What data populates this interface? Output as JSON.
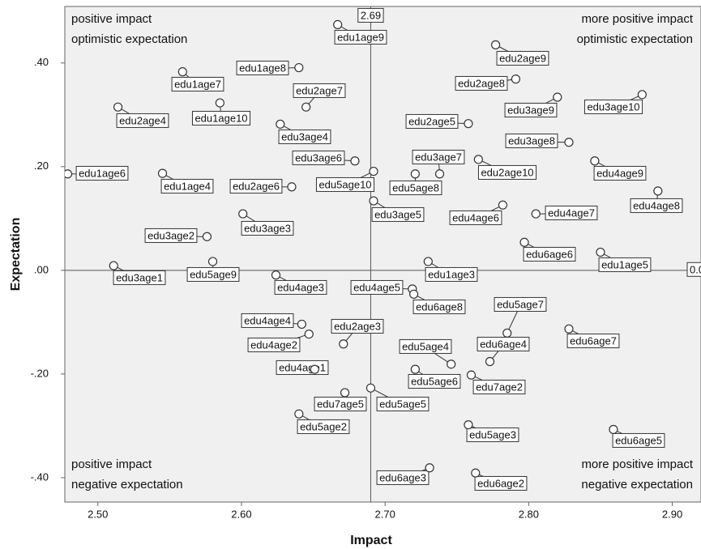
{
  "chart_data": {
    "type": "scatter",
    "x_label": "Impact",
    "y_label": "Expectation",
    "xlim": [
      2.477,
      2.92
    ],
    "ylim": [
      -0.447,
      0.509
    ],
    "xticks": [
      {
        "value": 2.5,
        "label": "2.50"
      },
      {
        "value": 2.6,
        "label": "2.60"
      },
      {
        "value": 2.7,
        "label": "2.70"
      },
      {
        "value": 2.8,
        "label": "2.80"
      },
      {
        "value": 2.9,
        "label": "2.90"
      }
    ],
    "yticks": [
      {
        "value": 0.4,
        "label": ".40"
      },
      {
        "value": 0.2,
        "label": ".20"
      },
      {
        "value": 0,
        "label": ".00"
      },
      {
        "value": -0.2,
        "label": "-.20"
      },
      {
        "value": -0.4,
        "label": "-.40"
      }
    ],
    "reference_lines": {
      "x": {
        "value": 2.69,
        "label": "2.69"
      },
      "y": {
        "value": 0,
        "label": "0.0"
      }
    },
    "annotations": [
      [
        "positive impact",
        "optimistic expectation"
      ],
      [
        "more positive impact",
        "optimistic expectation"
      ],
      [
        "positive impact",
        "negative expectation"
      ],
      [
        "more positive impact",
        "negative expectation"
      ]
    ],
    "marker_color": "#333333",
    "point_labels": [
      "edu1age9",
      "edu2age9",
      "edu1age8",
      "edu1age7",
      "edu2age8",
      "edu2age7",
      "edu1age10",
      "edu3age9",
      "edu3age10",
      "edu2age4",
      "edu2age5",
      "edu3age4",
      "edu3age8",
      "edu1age6",
      "edu1age4",
      "edu3age6",
      "edu5age8",
      "edu3age7",
      "edu2age10",
      "edu4age9",
      "edu5age10",
      "edu2age6",
      "edu4age8",
      "edu3age5",
      "edu4age6",
      "edu4age7",
      "edu3age3",
      "edu3age2",
      "edu6age6",
      "edu1age5",
      "edu5age9",
      "edu3age1",
      "edu1age3",
      "edu4age3",
      "edu4age5",
      "edu6age8",
      "edu4age4",
      "edu4age2",
      "edu5age7",
      "edu6age7",
      "edu2age3",
      "edu6age4",
      "edu5age4",
      "edu4age1",
      "edu5age6",
      "edu7age2",
      "edu7age5",
      "edu5age5",
      "edu5age2",
      "edu5age3",
      "edu6age5",
      "edu6age3",
      "edu6age2"
    ],
    "x": [
      2.667,
      2.777,
      2.64,
      2.559,
      2.791,
      2.645,
      2.585,
      2.82,
      2.879,
      2.514,
      2.758,
      2.627,
      2.828,
      2.479,
      2.545,
      2.679,
      2.721,
      2.738,
      2.765,
      2.846,
      2.692,
      2.635,
      2.89,
      2.692,
      2.782,
      2.805,
      2.601,
      2.576,
      2.797,
      2.85,
      2.58,
      2.511,
      2.73,
      2.624,
      2.719,
      2.72,
      2.642,
      2.647,
      2.785,
      2.828,
      2.671,
      2.773,
      2.746,
      2.651,
      2.721,
      2.76,
      2.672,
      2.69,
      2.64,
      2.758,
      2.859,
      2.731,
      2.763
    ],
    "series": [
      {
        "values": [
          0.474,
          0.435,
          0.391,
          0.383,
          0.369,
          0.315,
          0.323,
          0.334,
          0.339,
          0.315,
          0.283,
          0.282,
          0.247,
          0.186,
          0.187,
          0.211,
          0.186,
          0.186,
          0.214,
          0.211,
          0.191,
          0.161,
          0.153,
          0.134,
          0.126,
          0.109,
          0.109,
          0.065,
          0.054,
          0.035,
          0.017,
          0.009,
          0.017,
          -0.009,
          -0.036,
          -0.046,
          -0.104,
          -0.123,
          -0.121,
          -0.113,
          -0.142,
          -0.176,
          -0.181,
          -0.191,
          -0.191,
          -0.202,
          -0.236,
          -0.227,
          -0.277,
          -0.298,
          -0.307,
          -0.381,
          -0.391
        ]
      }
    ]
  }
}
